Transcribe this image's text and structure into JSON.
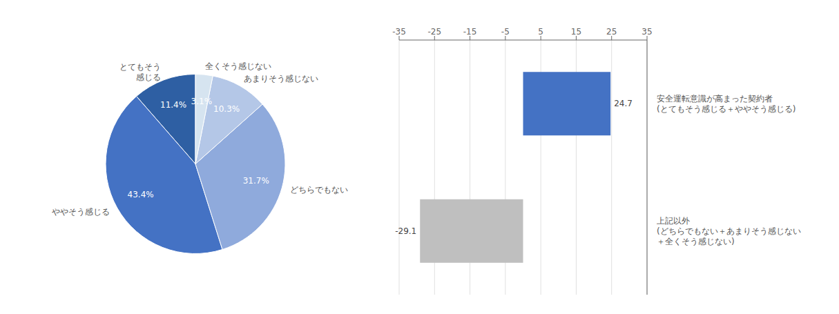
{
  "chart_data": [
    {
      "type": "pie",
      "categories": [
        "とてもそう\n感じる",
        "ややそう感じる",
        "どちらでもない",
        "あまりそう感じない",
        "全くそう感じない"
      ],
      "values": [
        11.4,
        43.4,
        31.7,
        10.3,
        3.1
      ],
      "value_labels": [
        "11.4%",
        "43.4%",
        "31.7%",
        "10.3%",
        "3.1%"
      ],
      "colors": [
        "#2e5fa3",
        "#4472c4",
        "#8faadc",
        "#b4c7e7",
        "#d6e4f0"
      ],
      "data_labels": true
    },
    {
      "type": "bar",
      "orientation": "horizontal",
      "categories": [
        "安全運転意識が高まった契約者\n(とてもそう感じる＋ややそう感じる)",
        "上記以外\n(どちらでもない＋あまりそう感じない\n＋全くそう感じない)"
      ],
      "values": [
        24.7,
        -29.1
      ],
      "colors": [
        "#4472c4",
        "#bfbfbf"
      ],
      "xlim": [
        -35,
        35
      ],
      "xticks": [
        -35,
        -25,
        -15,
        -5,
        5,
        15,
        25,
        35
      ],
      "grid": true,
      "data_labels": true
    }
  ]
}
